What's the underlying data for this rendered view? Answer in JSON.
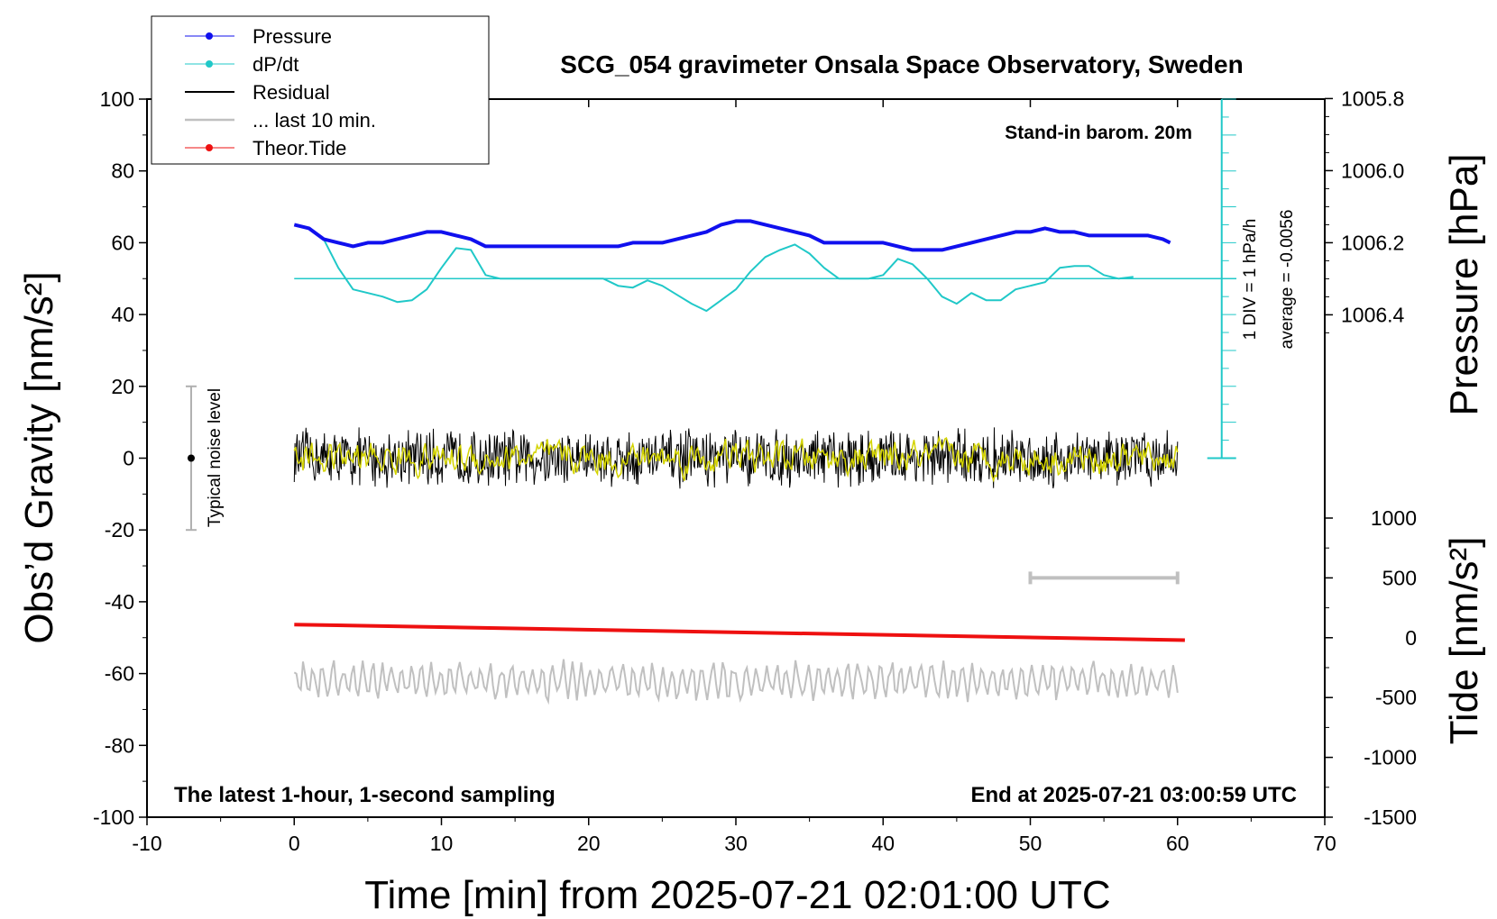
{
  "chart_data": {
    "type": "line",
    "title": "SCG_054 gravimeter Onsala Space Observatory, Sweden",
    "xlabel": "Time [min] from 2025-07-21 02:01:00 UTC",
    "ylabel": "Obs’d Gravity [nm/s²]",
    "ylabel_right_top": "Pressure [hPa]",
    "ylabel_right_bottom": "Tide [nm/s²]",
    "xlim": [
      -10,
      70
    ],
    "ylim": [
      -100,
      100
    ],
    "x_ticks": [
      "-10",
      "0",
      "10",
      "20",
      "30",
      "40",
      "50",
      "60",
      "70"
    ],
    "y_ticks": [
      "100",
      "80",
      "60",
      "40",
      "20",
      "0",
      "-20",
      "-40",
      "-60",
      "-80",
      "-100"
    ],
    "pressure_ticks": [
      "1006.4",
      "1006.2",
      "1006.0",
      "1005.8"
    ],
    "tide_ticks": [
      "1000",
      "500",
      "0",
      "-500",
      "-1000",
      "-1500"
    ],
    "annotations": {
      "barometer": "Stand-in barom. 20m",
      "div_label": "1 DIV = 1 hPa/h",
      "average_label": "average = -0.0056",
      "noise_label": "Typical noise level",
      "latest": "The latest 1-hour, 1-second sampling",
      "end_time": "End at 2025-07-21 03:00:59 UTC"
    },
    "legend": {
      "placement": "top-left",
      "entries": [
        "Pressure",
        "dP/dt",
        "Residual",
        "... last 10 min.",
        "Theor.Tide"
      ]
    },
    "colors": {
      "pressure": "#1010ee",
      "dpdt": "#20c8c8",
      "residual": "#000000",
      "last10": "#d4d400",
      "tide": "#ee1010",
      "noise_trace": "#c0c0c0"
    },
    "series": [
      {
        "name": "Pressure",
        "unit": "hPa",
        "x": [
          0,
          1,
          2,
          3,
          4,
          5,
          6,
          7,
          8,
          9,
          10,
          11,
          12,
          13,
          14,
          15,
          16,
          17,
          18,
          19,
          20,
          21,
          22,
          23,
          24,
          25,
          26,
          27,
          28,
          29,
          30,
          31,
          32,
          33,
          34,
          35,
          36,
          37,
          38,
          39,
          40,
          41,
          42,
          43,
          44,
          45,
          46,
          47,
          48,
          49,
          50,
          51,
          52,
          53,
          54,
          55,
          56,
          57,
          58,
          59,
          59.5
        ],
        "values": [
          1006.15,
          1006.16,
          1006.19,
          1006.2,
          1006.21,
          1006.2,
          1006.2,
          1006.19,
          1006.18,
          1006.17,
          1006.17,
          1006.18,
          1006.19,
          1006.21,
          1006.21,
          1006.21,
          1006.21,
          1006.21,
          1006.21,
          1006.21,
          1006.21,
          1006.21,
          1006.21,
          1006.2,
          1006.2,
          1006.2,
          1006.19,
          1006.18,
          1006.17,
          1006.15,
          1006.14,
          1006.14,
          1006.15,
          1006.16,
          1006.17,
          1006.18,
          1006.2,
          1006.2,
          1006.2,
          1006.2,
          1006.2,
          1006.21,
          1006.22,
          1006.22,
          1006.22,
          1006.21,
          1006.2,
          1006.19,
          1006.18,
          1006.17,
          1006.17,
          1006.16,
          1006.17,
          1006.17,
          1006.18,
          1006.18,
          1006.18,
          1006.18,
          1006.18,
          1006.19,
          1006.2
        ]
      },
      {
        "name": "dP/dt",
        "unit": "gravity-axis units (1 DIV = 1 hPa/h, zero line at 50)",
        "x": [
          2,
          3,
          4,
          5,
          6,
          7,
          8,
          9,
          10,
          11,
          12,
          13,
          14,
          15,
          16,
          17,
          18,
          19,
          20,
          21,
          22,
          23,
          24,
          25,
          26,
          27,
          28,
          29,
          30,
          31,
          32,
          33,
          34,
          35,
          36,
          37,
          38,
          39,
          40,
          41,
          42,
          43,
          44,
          45,
          46,
          47,
          48,
          49,
          50,
          51,
          52,
          53,
          54,
          55,
          56,
          57
        ],
        "values": [
          61,
          53,
          47,
          46,
          45,
          43.5,
          44,
          47,
          53,
          58.5,
          58,
          51,
          50,
          50,
          50,
          50,
          50,
          50,
          50,
          50,
          48,
          47.5,
          49.5,
          48,
          45.5,
          43,
          41,
          44,
          47,
          52,
          56,
          58,
          59.5,
          57,
          53,
          50,
          50,
          50,
          51,
          55.5,
          54,
          50,
          45,
          43,
          46,
          44,
          44,
          47,
          48,
          49,
          53,
          53.5,
          53.5,
          51,
          50,
          50.5
        ]
      },
      {
        "name": "Residual",
        "unit": "nm/s²",
        "x_range": [
          0,
          60
        ],
        "amplitude": 9
      },
      {
        "name": "... last 10 min.",
        "unit": "nm/s²",
        "x_range": [
          0,
          60
        ],
        "amplitude": 4
      },
      {
        "name": "Theor.Tide",
        "unit": "nm/s²",
        "x": [
          0,
          60.5
        ],
        "values": [
          110,
          -20
        ]
      },
      {
        "name": "Typical noise trace",
        "unit": "nm/s²",
        "x_range": [
          0,
          60
        ],
        "offset": -62,
        "amplitude": 6
      }
    ],
    "noise_level": {
      "x": -7,
      "y": 0,
      "low": -20,
      "high": 20
    },
    "scale_bar": {
      "x_start": 50,
      "x_end": 60,
      "tide_y": 500
    }
  }
}
